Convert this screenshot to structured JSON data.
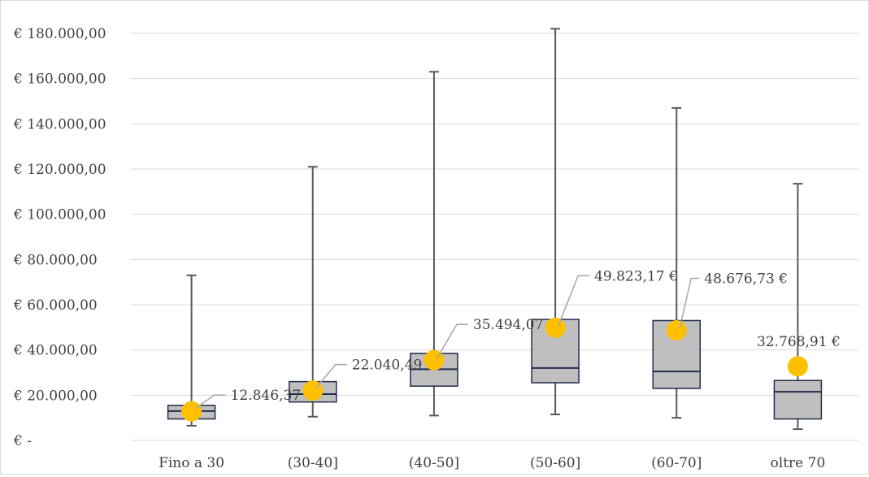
{
  "chart_data": {
    "type": "box",
    "title": "",
    "xlabel": "",
    "ylabel": "",
    "ylim": [
      0,
      180000
    ],
    "grid": true,
    "y_tick_labels": [
      "€ -",
      "€ 20.000,00",
      "€ 40.000,00",
      "€ 60.000,00",
      "€ 80.000,00",
      "€ 100.000,00",
      "€ 120.000,00",
      "€ 140.000,00",
      "€ 160.000,00",
      "€ 180.000,00"
    ],
    "categories": [
      "Fino a 30",
      "(30-40]",
      "(40-50]",
      "(50-60]",
      "(60-70]",
      "oltre 70"
    ],
    "boxes": [
      {
        "min": 6500,
        "q1": 9500,
        "median": 13000,
        "q3": 15500,
        "max": 73000
      },
      {
        "min": 10500,
        "q1": 17000,
        "median": 20500,
        "q3": 26000,
        "max": 121000
      },
      {
        "min": 11000,
        "q1": 24000,
        "median": 31500,
        "q3": 38500,
        "max": 163000
      },
      {
        "min": 11500,
        "q1": 25500,
        "median": 32000,
        "q3": 53500,
        "max": 182000
      },
      {
        "min": 10000,
        "q1": 23000,
        "median": 30500,
        "q3": 53000,
        "max": 147000
      },
      {
        "min": 5000,
        "q1": 9500,
        "median": 21500,
        "q3": 26500,
        "max": 113500
      }
    ],
    "means": [
      12846.37,
      22040.49,
      35494.07,
      49823.17,
      48676.73,
      32768.91
    ],
    "mean_labels": [
      "12.846,37 €",
      "22.040,49 €",
      "35.494,07 €",
      "49.823,17 €",
      "48.676,73 €",
      "32.768,91 €"
    ],
    "colors": {
      "box_fill": "#bfbfbf",
      "box_stroke": "#1f2d4e",
      "whisker": "#595959",
      "mean_marker": "#ffc000",
      "grid": "#d9d9d9",
      "leader": "#a6a6a6"
    }
  }
}
